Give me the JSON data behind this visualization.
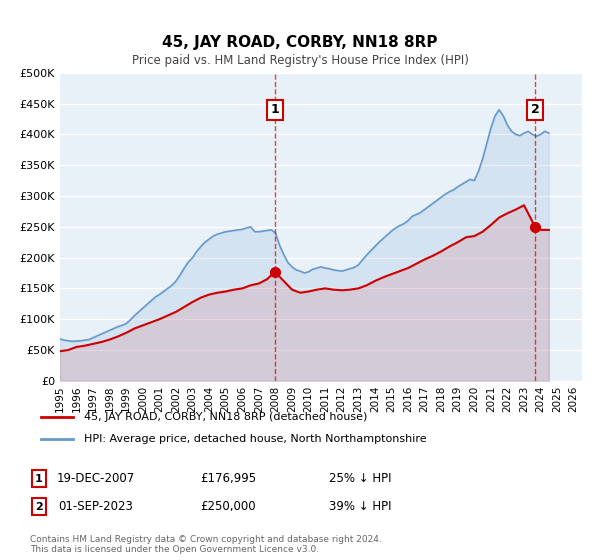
{
  "title": "45, JAY ROAD, CORBY, NN18 8RP",
  "subtitle": "Price paid vs. HM Land Registry's House Price Index (HPI)",
  "xlabel": "",
  "ylabel": "",
  "ylim": [
    0,
    500000
  ],
  "xlim": [
    1995.0,
    2026.5
  ],
  "yticks": [
    0,
    50000,
    100000,
    150000,
    200000,
    250000,
    300000,
    350000,
    400000,
    450000,
    500000
  ],
  "ytick_labels": [
    "£0",
    "£50K",
    "£100K",
    "£150K",
    "£200K",
    "£250K",
    "£300K",
    "£350K",
    "£400K",
    "£450K",
    "£500K"
  ],
  "xticks": [
    1995,
    1996,
    1997,
    1998,
    1999,
    2000,
    2001,
    2002,
    2003,
    2004,
    2005,
    2006,
    2007,
    2008,
    2009,
    2010,
    2011,
    2012,
    2013,
    2014,
    2015,
    2016,
    2017,
    2018,
    2019,
    2020,
    2021,
    2022,
    2023,
    2024,
    2025,
    2026
  ],
  "background_color": "#ffffff",
  "plot_bg_color": "#e8f0f8",
  "grid_color": "#ffffff",
  "red_line_color": "#cc0000",
  "blue_line_color": "#6699cc",
  "sale1_x": 2007.97,
  "sale1_y": 176995,
  "sale1_label": "1",
  "sale1_date": "19-DEC-2007",
  "sale1_price": "£176,995",
  "sale1_hpi": "25% ↓ HPI",
  "sale2_x": 2023.67,
  "sale2_y": 250000,
  "sale2_label": "2",
  "sale2_date": "01-SEP-2023",
  "sale2_price": "£250,000",
  "sale2_hpi": "39% ↓ HPI",
  "legend_line1": "45, JAY ROAD, CORBY, NN18 8RP (detached house)",
  "legend_line2": "HPI: Average price, detached house, North Northamptonshire",
  "footer": "Contains HM Land Registry data © Crown copyright and database right 2024.\nThis data is licensed under the Open Government Licence v3.0.",
  "hpi_x": [
    1995.0,
    1995.25,
    1995.5,
    1995.75,
    1996.0,
    1996.25,
    1996.5,
    1996.75,
    1997.0,
    1997.25,
    1997.5,
    1997.75,
    1998.0,
    1998.25,
    1998.5,
    1998.75,
    1999.0,
    1999.25,
    1999.5,
    1999.75,
    2000.0,
    2000.25,
    2000.5,
    2000.75,
    2001.0,
    2001.25,
    2001.5,
    2001.75,
    2002.0,
    2002.25,
    2002.5,
    2002.75,
    2003.0,
    2003.25,
    2003.5,
    2003.75,
    2004.0,
    2004.25,
    2004.5,
    2004.75,
    2005.0,
    2005.25,
    2005.5,
    2005.75,
    2006.0,
    2006.25,
    2006.5,
    2006.75,
    2007.0,
    2007.25,
    2007.5,
    2007.75,
    2008.0,
    2008.25,
    2008.5,
    2008.75,
    2009.0,
    2009.25,
    2009.5,
    2009.75,
    2010.0,
    2010.25,
    2010.5,
    2010.75,
    2011.0,
    2011.25,
    2011.5,
    2011.75,
    2012.0,
    2012.25,
    2012.5,
    2012.75,
    2013.0,
    2013.25,
    2013.5,
    2013.75,
    2014.0,
    2014.25,
    2014.5,
    2014.75,
    2015.0,
    2015.25,
    2015.5,
    2015.75,
    2016.0,
    2016.25,
    2016.5,
    2016.75,
    2017.0,
    2017.25,
    2017.5,
    2017.75,
    2018.0,
    2018.25,
    2018.5,
    2018.75,
    2019.0,
    2019.25,
    2019.5,
    2019.75,
    2020.0,
    2020.25,
    2020.5,
    2020.75,
    2021.0,
    2021.25,
    2021.5,
    2021.75,
    2022.0,
    2022.25,
    2022.5,
    2022.75,
    2023.0,
    2023.25,
    2023.5,
    2023.75,
    2024.0,
    2024.25,
    2024.5
  ],
  "hpi_y": [
    68000,
    66000,
    65000,
    64000,
    64500,
    65000,
    66000,
    67000,
    70000,
    73000,
    76000,
    79000,
    82000,
    85000,
    88000,
    90000,
    93000,
    99000,
    106000,
    112000,
    118000,
    124000,
    130000,
    136000,
    140000,
    145000,
    150000,
    155000,
    162000,
    172000,
    183000,
    193000,
    200000,
    210000,
    218000,
    225000,
    230000,
    235000,
    238000,
    240000,
    242000,
    243000,
    244000,
    245000,
    246000,
    248000,
    250000,
    242000,
    242000,
    243000,
    244000,
    245000,
    240000,
    220000,
    205000,
    192000,
    185000,
    180000,
    178000,
    175000,
    177000,
    181000,
    183000,
    185000,
    183000,
    182000,
    180000,
    179000,
    178000,
    180000,
    182000,
    184000,
    188000,
    196000,
    204000,
    211000,
    218000,
    225000,
    231000,
    237000,
    243000,
    248000,
    252000,
    255000,
    260000,
    267000,
    270000,
    273000,
    278000,
    283000,
    288000,
    293000,
    298000,
    303000,
    307000,
    310000,
    315000,
    319000,
    323000,
    327000,
    325000,
    340000,
    360000,
    385000,
    410000,
    430000,
    440000,
    430000,
    415000,
    405000,
    400000,
    398000,
    402000,
    405000,
    400000,
    397000,
    400000,
    405000,
    402000
  ],
  "red_x": [
    1995.0,
    1995.5,
    1996.0,
    1996.5,
    1997.0,
    1997.5,
    1998.0,
    1998.5,
    1999.0,
    1999.5,
    2000.0,
    2000.5,
    2001.0,
    2001.5,
    2002.0,
    2002.5,
    2003.0,
    2003.5,
    2004.0,
    2004.5,
    2005.0,
    2005.5,
    2006.0,
    2006.5,
    2007.0,
    2007.5,
    2007.97,
    2008.5,
    2009.0,
    2009.5,
    2010.0,
    2010.5,
    2011.0,
    2011.5,
    2012.0,
    2012.5,
    2013.0,
    2013.5,
    2014.0,
    2014.5,
    2015.0,
    2015.5,
    2016.0,
    2016.5,
    2017.0,
    2017.5,
    2018.0,
    2018.5,
    2019.0,
    2019.5,
    2020.0,
    2020.5,
    2021.0,
    2021.5,
    2022.0,
    2022.5,
    2023.0,
    2023.67,
    2024.0,
    2024.5
  ],
  "red_y": [
    48000,
    50000,
    55000,
    57000,
    60000,
    63000,
    67000,
    72000,
    78000,
    85000,
    90000,
    95000,
    100000,
    106000,
    112000,
    120000,
    128000,
    135000,
    140000,
    143000,
    145000,
    148000,
    150000,
    155000,
    158000,
    165000,
    176995,
    162000,
    148000,
    143000,
    145000,
    148000,
    150000,
    148000,
    147000,
    148000,
    150000,
    155000,
    162000,
    168000,
    173000,
    178000,
    183000,
    190000,
    197000,
    203000,
    210000,
    218000,
    225000,
    233000,
    235000,
    242000,
    253000,
    265000,
    272000,
    278000,
    285000,
    250000,
    245000,
    245000
  ]
}
